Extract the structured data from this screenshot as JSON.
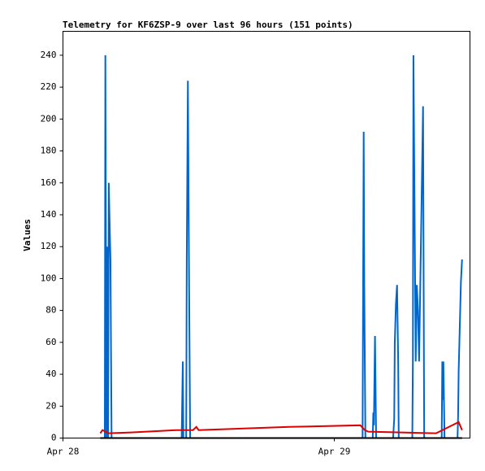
{
  "chart_data": {
    "type": "line",
    "title": "Telemetry for KF6ZSP-9 over last 96 hours (151 points)",
    "y_label": "Values",
    "xlim": [
      0,
      36
    ],
    "xticks": [
      {
        "value": 0,
        "label": "Apr 28"
      },
      {
        "value": 24,
        "label": "Apr 29"
      }
    ],
    "ylim": [
      0,
      255
    ],
    "yticks": [
      0,
      20,
      40,
      60,
      80,
      100,
      120,
      140,
      160,
      180,
      200,
      220,
      240
    ],
    "series": [
      {
        "color": "#0066cc",
        "x": [
          3.3,
          3.7,
          3.75,
          3.85,
          3.9,
          4.0,
          4.05,
          4.1,
          4.2,
          4.25,
          4.3,
          10.5,
          10.55,
          10.6,
          10.65,
          10.9,
          10.95,
          11.05,
          11.15,
          11.25,
          26.5,
          26.55,
          26.6,
          26.65,
          26.75,
          27.4,
          27.45,
          27.5,
          27.6,
          27.7,
          29.2,
          29.3,
          29.35,
          29.45,
          29.55,
          29.65,
          29.7,
          30.9,
          30.95,
          31.0,
          31.1,
          31.2,
          31.3,
          31.4,
          31.5,
          31.85,
          31.95,
          33.5,
          33.55,
          33.6,
          33.65,
          33.75,
          34.9,
          34.95,
          35.0,
          35.1,
          35.2,
          35.3
        ],
        "values": [
          0,
          0,
          240,
          0,
          120,
          0,
          160,
          144,
          112,
          56,
          0,
          0,
          24,
          48,
          0,
          0,
          112,
          224,
          104,
          0,
          0,
          96,
          192,
          96,
          0,
          0,
          16,
          8,
          64,
          0,
          0,
          12,
          60,
          84,
          96,
          48,
          0,
          0,
          48,
          240,
          144,
          48,
          96,
          80,
          48,
          208,
          0,
          0,
          48,
          24,
          48,
          0,
          0,
          14,
          42,
          70,
          98,
          112
        ]
      },
      {
        "color": "#dd0000",
        "x": [
          3.3,
          3.5,
          4.0,
          6,
          10,
          11.5,
          11.8,
          12.0,
          14,
          20,
          26.3,
          26.7,
          27.0,
          30,
          33,
          35.0,
          35.3
        ],
        "values": [
          3,
          5,
          3,
          3.5,
          5,
          5,
          7,
          5,
          5.5,
          7,
          8,
          5,
          4,
          3.5,
          3,
          10,
          5
        ]
      },
      {
        "color": "#000000",
        "x": [
          3.3,
          35.3
        ],
        "values": [
          0,
          0
        ]
      }
    ]
  }
}
